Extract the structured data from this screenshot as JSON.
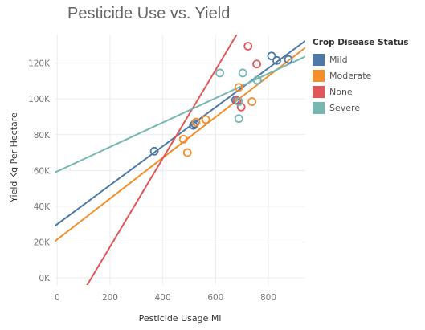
{
  "chart_data": {
    "type": "scatter",
    "title": "Pesticide Use vs. Yield",
    "xlabel": "Pesticide Usage Ml",
    "ylabel": "Yield Kg Per Hectare",
    "xlim": [
      -10,
      940
    ],
    "ylim": [
      -4000,
      136000
    ],
    "x_ticks": [
      0,
      200,
      400,
      600,
      800
    ],
    "x_tick_labels": [
      "0",
      "200",
      "400",
      "600",
      "800"
    ],
    "y_ticks": [
      0,
      20000,
      40000,
      60000,
      80000,
      100000,
      120000
    ],
    "y_tick_labels": [
      "0K",
      "20K",
      "40K",
      "60K",
      "80K",
      "100K",
      "120K"
    ],
    "grid": true,
    "trend_lines": true,
    "legend": {
      "title": "Crop Disease Status",
      "placement": "right"
    },
    "series": [
      {
        "name": "Mild",
        "color": "#4e79a7",
        "points": [
          [
            368,
            70800
          ],
          [
            516,
            85200
          ],
          [
            521,
            86100
          ],
          [
            676,
            99400
          ],
          [
            812,
            124000
          ],
          [
            832,
            121500
          ],
          [
            876,
            122000
          ]
        ],
        "trend": {
          "slope": 109,
          "intercept": 30000
        }
      },
      {
        "name": "Moderate",
        "color": "#f28e2b",
        "points": [
          [
            478,
            77500
          ],
          [
            493,
            70000
          ],
          [
            526,
            87000
          ],
          [
            563,
            88500
          ],
          [
            688,
            106500
          ],
          [
            738,
            98500
          ]
        ],
        "trend": {
          "slope": 114,
          "intercept": 21500
        }
      },
      {
        "name": "None",
        "color": "#e15759",
        "points": [
          [
            682,
            99000
          ],
          [
            697,
            95500
          ],
          [
            723,
            129500
          ],
          [
            756,
            119500
          ]
        ],
        "trend": {
          "slope": 247,
          "intercept": -32000
        }
      },
      {
        "name": "Severe",
        "color": "#76b7b2",
        "points": [
          [
            616,
            114500
          ],
          [
            688,
            98500
          ],
          [
            688,
            89000
          ],
          [
            703,
            114500
          ],
          [
            758,
            110500
          ]
        ],
        "trend": {
          "slope": 68.3,
          "intercept": 59500
        }
      }
    ]
  }
}
